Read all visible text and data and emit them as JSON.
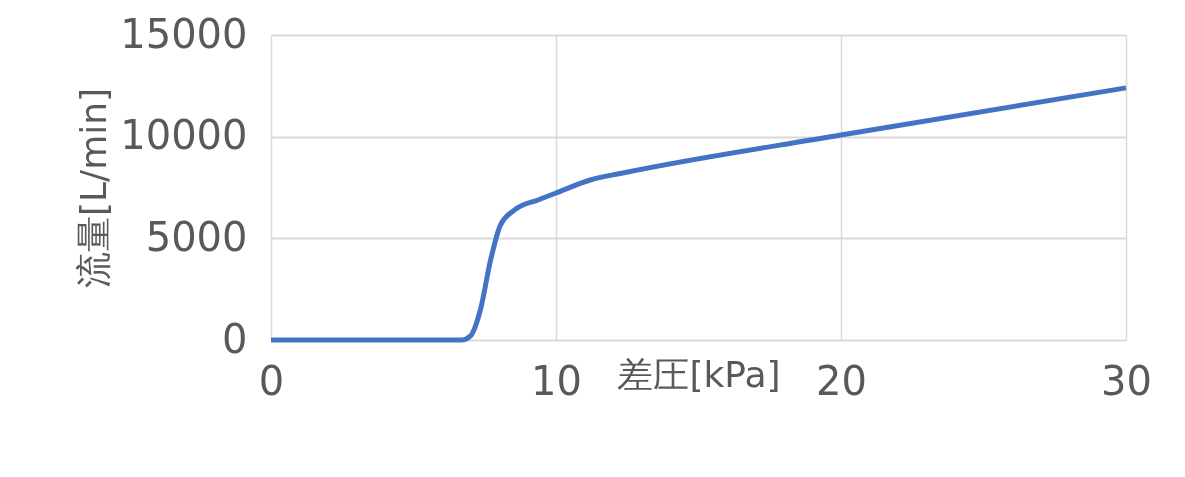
{
  "chart_data": {
    "type": "line",
    "xlabel": "差圧[kPa]",
    "ylabel": "流量[L/min]",
    "x": [
      0,
      3,
      5,
      6,
      6.7,
      7,
      7.35,
      7.7,
      8.05,
      8.55,
      9.4,
      10,
      11.2,
      12.3,
      20,
      30
    ],
    "series": [
      {
        "color": "#4472c4",
        "values": [
          0,
          0,
          0,
          0,
          0,
          200,
          1500,
          3900,
          5650,
          6400,
          6900,
          7230,
          7870,
          8200,
          10080,
          12400
        ]
      }
    ],
    "xlim": [
      0,
      30
    ],
    "xticks": [
      0,
      10,
      20,
      30
    ],
    "ylim": [
      0,
      15000
    ],
    "yticks": [
      0,
      5000,
      10000,
      15000
    ],
    "grid": true,
    "marker": "none",
    "line_style": "solid"
  }
}
